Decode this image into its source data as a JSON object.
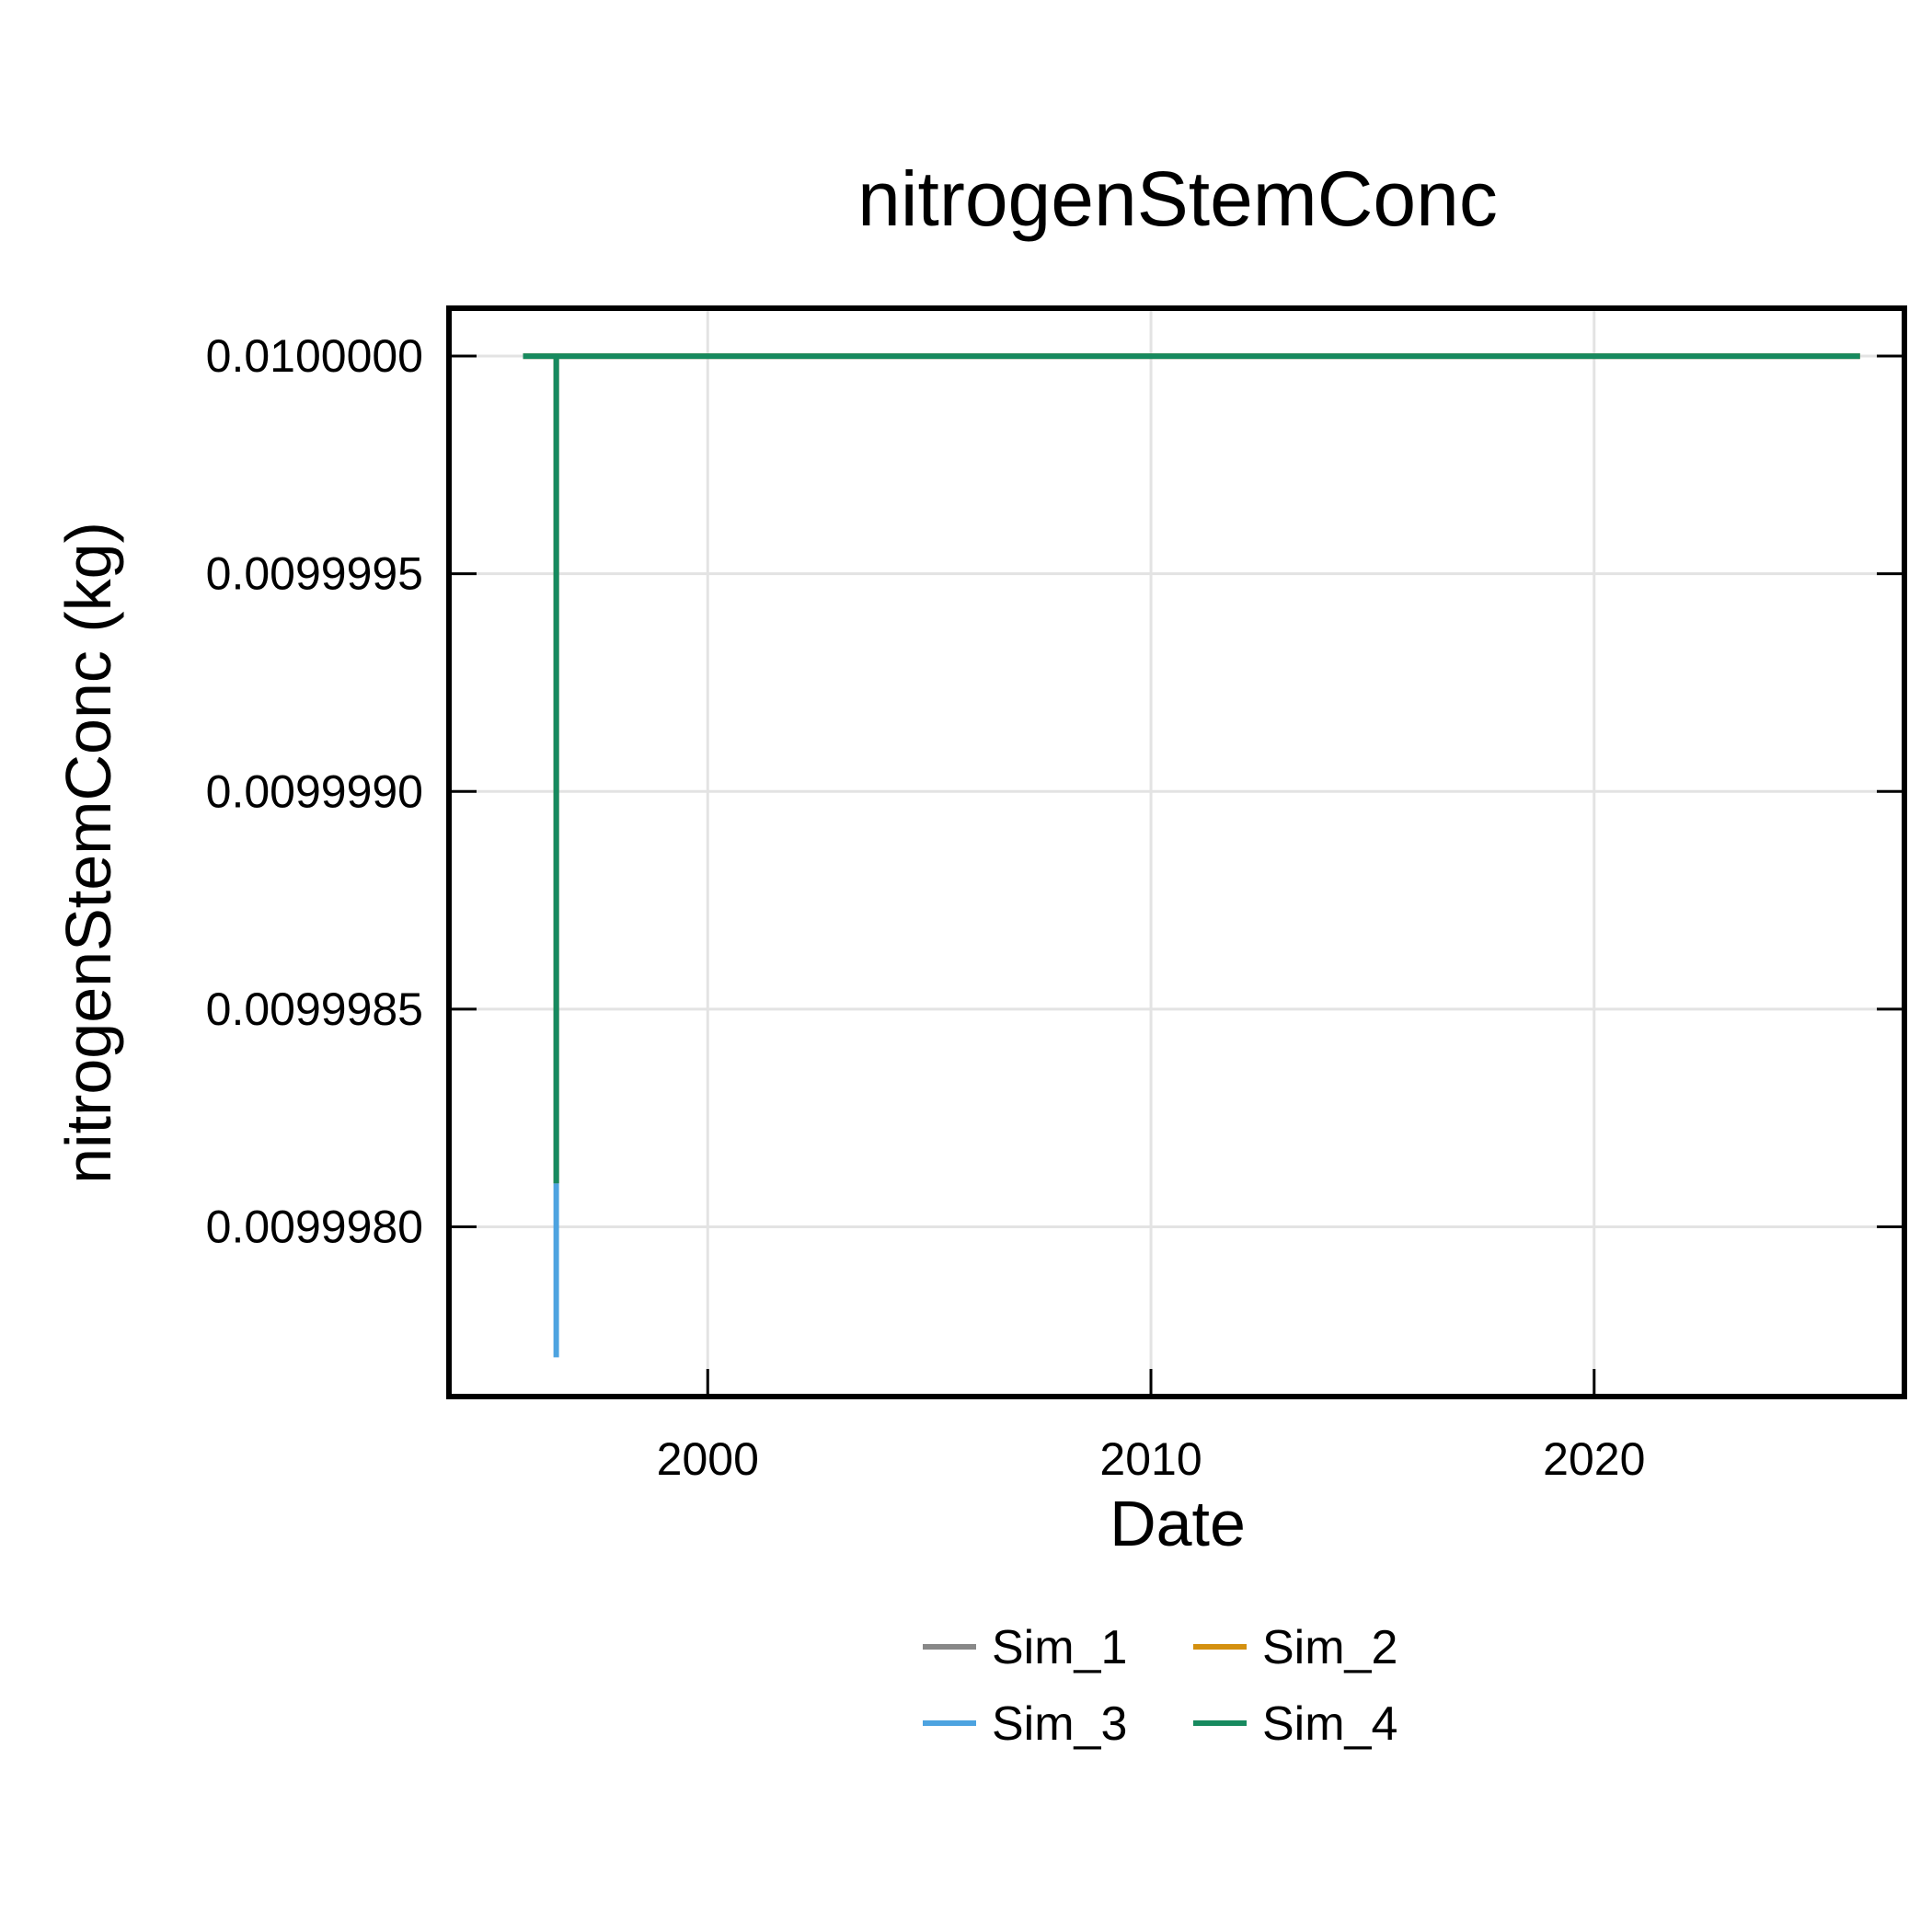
{
  "chart_data": {
    "type": "line",
    "title": "nitrogenStemConc",
    "xlabel": "Date",
    "ylabel": "nitrogenStemConc (kg)",
    "x_ticks": [
      "2000",
      "2010",
      "2020"
    ],
    "y_ticks": [
      "0.0099980",
      "0.0099985",
      "0.0099990",
      "0.0099995",
      "0.0100000"
    ],
    "xlim": [
      "1994-03-01",
      "2027-01-01"
    ],
    "ylim": [
      0.00999761,
      0.01000011
    ],
    "grid": true,
    "legend_position": "bottom",
    "series": [
      {
        "name": "Sim_1",
        "color": "#888888",
        "points": [
          [
            "1995-11-01",
            0.01
          ],
          [
            "1996-08-01",
            0.01
          ],
          [
            "1996-08-01",
            0.0099981
          ],
          [
            "1996-08-01",
            0.01
          ],
          [
            "2025-12-31",
            0.01
          ]
        ]
      },
      {
        "name": "Sim_2",
        "color": "#D4900F",
        "points": [
          [
            "1995-11-01",
            0.01
          ],
          [
            "1996-08-01",
            0.01
          ],
          [
            "1996-08-01",
            0.0099981
          ],
          [
            "1996-08-01",
            0.01
          ],
          [
            "2025-12-31",
            0.01
          ]
        ]
      },
      {
        "name": "Sim_3",
        "color": "#4DA3E0",
        "points": [
          [
            "1995-11-01",
            0.01
          ],
          [
            "1996-08-01",
            0.01
          ],
          [
            "1996-08-01",
            0.0099977
          ],
          [
            "1996-08-01",
            0.01
          ],
          [
            "2025-12-31",
            0.01
          ]
        ]
      },
      {
        "name": "Sim_4",
        "color": "#178A5F",
        "points": [
          [
            "1995-11-01",
            0.01
          ],
          [
            "1996-08-01",
            0.01
          ],
          [
            "1996-08-01",
            0.0099981
          ],
          [
            "1996-08-01",
            0.01
          ],
          [
            "2025-12-31",
            0.01
          ]
        ]
      }
    ]
  }
}
